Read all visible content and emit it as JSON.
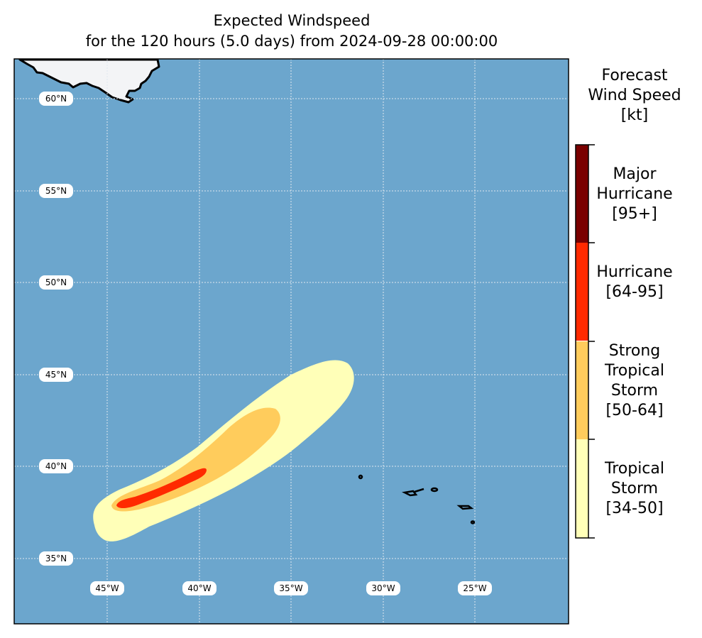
{
  "title": {
    "line1": "Expected Windspeed",
    "line2": "for the 120 hours (5.0 days) from 2024-09-28 00:00:00"
  },
  "map": {
    "ocean_color": "#6ca6cd",
    "land_color": "#f3f4f6",
    "lat_labels": [
      "60°N",
      "55°N",
      "50°N",
      "45°N",
      "40°N",
      "35°N"
    ],
    "lon_labels": [
      "45°W",
      "40°W",
      "35°W",
      "30°W",
      "25°W"
    ]
  },
  "colorbar": {
    "title_lines": [
      "Forecast",
      "Wind Speed",
      "[kt]"
    ],
    "categories": [
      {
        "name": "Major Hurricane",
        "lines": [
          "Major",
          "Hurricane",
          "[95+]"
        ],
        "range": "[95+]",
        "color": "#7a0000"
      },
      {
        "name": "Hurricane",
        "lines": [
          "Hurricane",
          "[64-95]"
        ],
        "range": "[64-95]",
        "color": "#ff2a00"
      },
      {
        "name": "Strong Tropical Storm",
        "lines": [
          "Strong",
          "Tropical",
          "Storm",
          "[50-64]"
        ],
        "range": "[50-64]",
        "color": "#ffcc5c"
      },
      {
        "name": "Tropical Storm",
        "lines": [
          "Tropical",
          "Storm",
          "[34-50]"
        ],
        "range": "[34-50]",
        "color": "#ffffb8"
      }
    ]
  }
}
